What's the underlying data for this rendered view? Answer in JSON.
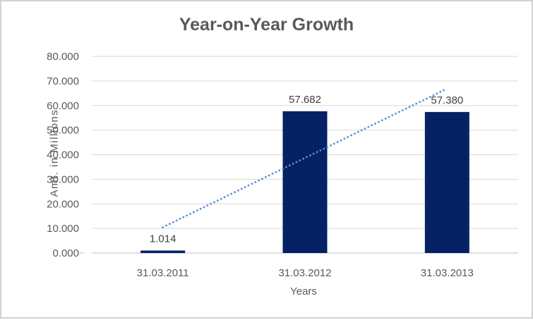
{
  "chart_data": {
    "type": "bar",
    "title": "Year-on-Year Growth",
    "xlabel": "Years",
    "ylabel": "Amt. in Millions",
    "categories": [
      "31.03.2011",
      "31.03.2012",
      "31.03.2013"
    ],
    "values": [
      1.014,
      57.682,
      57.38
    ],
    "data_labels": [
      "1.014",
      "57.682",
      "57.380"
    ],
    "ylim": [
      0,
      80
    ],
    "ytick_step": 10,
    "ytick_labels": [
      "0.000",
      "10.000",
      "20.000",
      "30.000",
      "40.000",
      "50.000",
      "60.000",
      "70.000",
      "80.000"
    ],
    "grid": true,
    "legend": "none",
    "trendline": {
      "type": "linear",
      "style": "dotted",
      "start_value": 10.5,
      "end_value": 66.9
    },
    "colors": {
      "bar": "#052264",
      "trendline": "#5B8FD9",
      "gridline": "#D9D9D9",
      "axis_line": "#C2C2C2",
      "title_text": "#595959",
      "axis_text": "#595959",
      "data_label_text": "#404040",
      "frame_border": "#D2D2D2",
      "background": "#FFFFFF"
    }
  }
}
